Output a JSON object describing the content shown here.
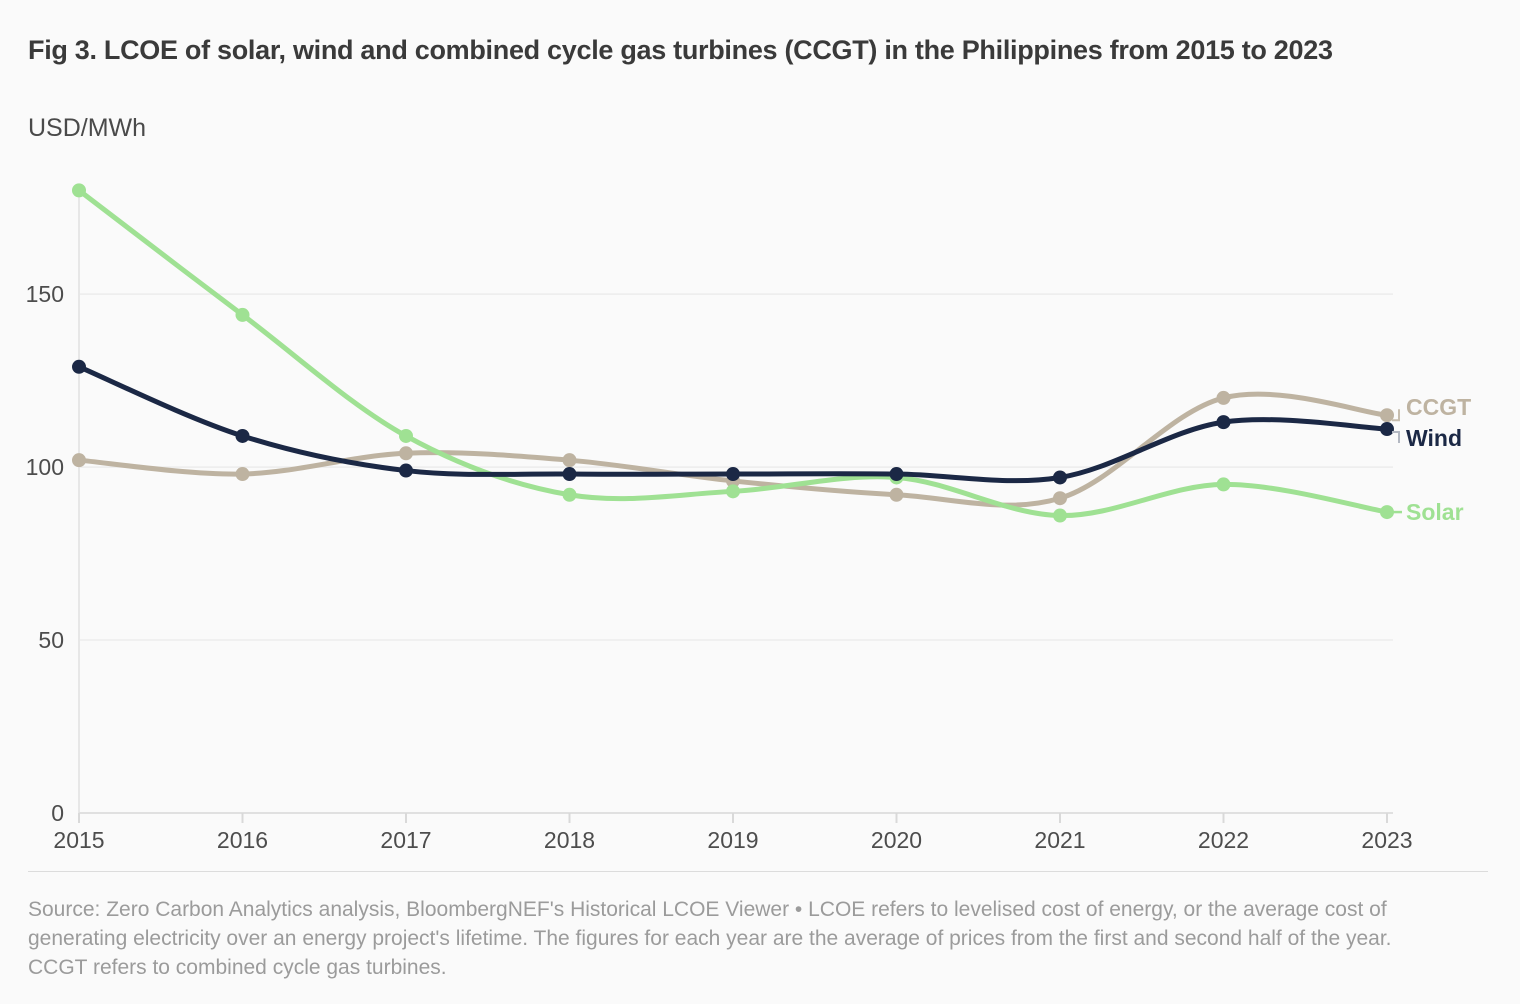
{
  "header": {
    "title": "Fig 3. LCOE of solar, wind and combined cycle gas turbines (CCGT) in the Philippines from 2015 to 2023",
    "unit": "USD/MWh"
  },
  "chart_data": {
    "type": "line",
    "title": "Fig 3. LCOE of solar, wind and combined cycle gas turbines (CCGT) in the Philippines from 2015 to 2023",
    "ylabel": "USD/MWh",
    "xlabel": "",
    "x": [
      2015,
      2016,
      2017,
      2018,
      2019,
      2020,
      2021,
      2022,
      2023
    ],
    "yticks": [
      0,
      50,
      100,
      150
    ],
    "ylim": [
      0,
      185
    ],
    "grid": true,
    "legend_position": "right-end-labels",
    "series": [
      {
        "name": "CCGT",
        "color": "#beb3a1",
        "values": [
          102,
          98,
          104,
          102,
          96,
          92,
          91,
          120,
          115
        ]
      },
      {
        "name": "Solar",
        "color": "#9fe193",
        "values": [
          180,
          144,
          109,
          92,
          93,
          97,
          86,
          95,
          87
        ]
      },
      {
        "name": "Wind",
        "color": "#1b2845",
        "values": [
          129,
          109,
          99,
          98,
          98,
          98,
          97,
          113,
          111
        ]
      }
    ]
  },
  "footer": {
    "source": "Source: Zero Carbon Analytics analysis, BloombergNEF's Historical LCOE Viewer • LCOE refers to levelised cost of energy, or the average cost of generating electricity over an energy project's lifetime. The figures for each year are the average of prices from the first and second half of the year. CCGT refers to combined cycle gas turbines."
  }
}
